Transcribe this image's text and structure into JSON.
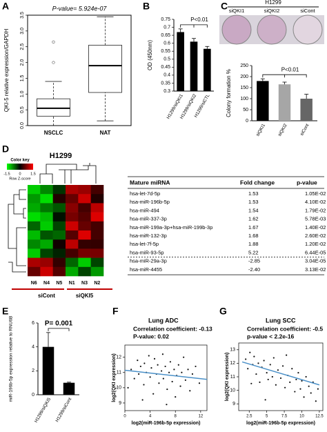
{
  "chart_data": [
    {
      "type": "box",
      "panel": "A",
      "title": "P-value= 5.924e-07",
      "y_label": "QKI-5 relative expression/GAPDH",
      "categories": [
        "NSCLC",
        "NAT"
      ],
      "boxes": [
        {
          "low": 0.0,
          "q1": 0.3,
          "median": 0.55,
          "q3": 0.85,
          "high": 1.4,
          "outliers": [
            2.0,
            2.65
          ]
        },
        {
          "low": 0.15,
          "q1": 1.05,
          "median": 1.9,
          "q3": 2.55,
          "high": 3.45,
          "outliers": []
        }
      ],
      "ylim": [
        0,
        3.5
      ],
      "yticks": [
        {
          "value": 0,
          "label": "0.0"
        },
        0.5,
        {
          "value": 1,
          "label": "1.0"
        },
        1.5,
        {
          "value": 2,
          "label": "2.0"
        },
        2.5,
        {
          "value": 3,
          "label": "3.0"
        },
        3.5
      ],
      "color": "#000000"
    },
    {
      "type": "bar",
      "panel": "B",
      "y_label": "OD (450nm)",
      "annotation": "P<0.01",
      "categories": [
        "H1299/siQKI1",
        "H1299/siQKI2",
        "H1299/siCTL"
      ],
      "values": [
        0.67,
        0.61,
        0.565
      ],
      "errors": [
        0.02,
        0.02,
        0.015
      ],
      "ylim": [
        0.3,
        0.75
      ],
      "yticks": [
        0.3,
        0.35,
        0.4,
        0.45,
        0.5,
        0.55,
        0.6,
        0.65,
        0.7,
        0.75
      ],
      "color": "#000000"
    },
    {
      "type": "bar",
      "panel": "C",
      "photo_title": "H1299",
      "photo_labels": [
        "siQKI1",
        "siQKI2",
        "siCont"
      ],
      "y_label": "Colony formation %",
      "annotation": "P<0.01",
      "categories": [
        "siQKI1",
        "siQKI2",
        "siCont"
      ],
      "values": [
        180,
        165,
        100
      ],
      "errors": [
        10,
        10,
        20
      ],
      "ylim": [
        0,
        250
      ],
      "yticks": [
        0,
        50,
        100,
        150,
        200,
        250
      ],
      "colors": [
        "#000000",
        "#a6a6a6",
        "#666666"
      ]
    },
    {
      "type": "heatmap",
      "panel": "D",
      "title": "H1299",
      "colorbar": {
        "title": "Color key",
        "ticks": [
          -1.5,
          0,
          1.5
        ],
        "label": "Row Z-score"
      },
      "columns": [
        "N6",
        "N4",
        "N5",
        "N1",
        "N3",
        "N2"
      ],
      "groups": [
        "siCont",
        "siQKI5"
      ],
      "values": [
        [
          -1.2,
          -0.8,
          -0.3,
          1.0,
          0.9,
          0.4
        ],
        [
          -0.9,
          -1.3,
          0.2,
          0.6,
          1.2,
          0.2
        ],
        [
          -1.0,
          -0.7,
          -0.5,
          0.8,
          0.4,
          1.1
        ],
        [
          -1.3,
          -1.1,
          -0.1,
          0.7,
          0.5,
          1.3
        ],
        [
          -0.6,
          -1.2,
          -0.4,
          1.2,
          0.6,
          0.4
        ],
        [
          -1.1,
          -0.5,
          -0.6,
          0.5,
          1.3,
          0.4
        ],
        [
          -0.8,
          -1.0,
          0.1,
          1.1,
          0.3,
          0.3
        ],
        [
          -1.2,
          -0.4,
          -0.2,
          0.4,
          0.7,
          0.7
        ],
        [
          1.0,
          0.9,
          0.3,
          -0.6,
          -1.2,
          -0.4
        ],
        [
          0.6,
          1.2,
          0.5,
          -1.0,
          -0.4,
          -0.9
        ]
      ]
    },
    {
      "type": "bar",
      "panel": "E",
      "y_label": "miR-196b-5p expression relative to RNU6B",
      "annotation": "P= 0.001",
      "categories": [
        "H1299/siQKI5",
        "H1299/siCont"
      ],
      "values": [
        4.0,
        1.0
      ],
      "errors": [
        1.2,
        0.05
      ],
      "ylim": [
        0,
        6
      ],
      "yticks": [
        0,
        2,
        4,
        6
      ],
      "color": "#000000"
    },
    {
      "type": "scatter",
      "panel": "F",
      "title": "Lung ADC",
      "subtitle": "Correlation coefficient: -0.13",
      "note": "P-value: 0.02",
      "x_label": "log2(miR-196b-5p expression)",
      "y_label": "log2(QKI expression)",
      "x": [
        1,
        1.5,
        2,
        2.2,
        2.5,
        3,
        3.1,
        3.4,
        3.8,
        4,
        4.2,
        4.5,
        4.7,
        5,
        5.2,
        5.4,
        5.8,
        6,
        6.1,
        6.4,
        6.7,
        7,
        7.2,
        7.5,
        7.8,
        8,
        8.2,
        8.5,
        8.8,
        9,
        9.3,
        9.6,
        10,
        10.3,
        10.7,
        11.2,
        11.8,
        0.5,
        2.8,
        6.6
      ],
      "y": [
        11.2,
        10.6,
        11.8,
        10.9,
        11.4,
        10.2,
        11.6,
        11.0,
        12.1,
        10.7,
        11.3,
        9.6,
        11.9,
        10.9,
        11.5,
        10.3,
        11.1,
        12.2,
        10.6,
        11.4,
        9.9,
        11.0,
        11.7,
        10.4,
        11.2,
        9.4,
        10.8,
        11.5,
        10.1,
        11.0,
        12.0,
        10.5,
        11.2,
        9.8,
        10.9,
        11.4,
        10.3,
        10.0,
        9.2,
        8.9
      ],
      "trend": {
        "x": [
          0,
          13
        ],
        "y": [
          11.15,
          10.55
        ]
      },
      "trend_color": "#4a90c8",
      "xlim": [
        0,
        13
      ],
      "xticks": [
        0,
        4,
        8,
        12
      ],
      "ylim": [
        8.5,
        12.8
      ],
      "yticks": [
        9,
        10,
        11,
        12
      ]
    },
    {
      "type": "scatter",
      "panel": "G",
      "title": "Lung SCC",
      "subtitle": "Correlation coefficient: -0.5",
      "note": "p-value < 2.2e-16",
      "x_label": "log2(miR-196b-5p expression)",
      "y_label": "log2(QKI expression)",
      "x": [
        2,
        2.3,
        2.6,
        3,
        3.2,
        3.5,
        3.8,
        4,
        4.3,
        4.6,
        5,
        5.2,
        5.5,
        5.8,
        6,
        6.3,
        6.6,
        7,
        7.3,
        7.6,
        8,
        8.3,
        8.6,
        9,
        9.2,
        9.5,
        9.8,
        10,
        10.3,
        10.6,
        11,
        11.3,
        11.6,
        12,
        12.3,
        4.8,
        7.8,
        2.8
      ],
      "y": [
        12.3,
        11.6,
        12.8,
        11.9,
        12.5,
        11.2,
        12.0,
        10.6,
        11.7,
        12.2,
        11.3,
        10.8,
        11.9,
        11.0,
        12.4,
        10.4,
        11.5,
        10.9,
        11.8,
        10.2,
        11.1,
        10.6,
        11.6,
        9.9,
        10.8,
        11.3,
        10.1,
        10.7,
        9.5,
        11.0,
        10.3,
        9.8,
        10.6,
        9.2,
        10.1,
        9.3,
        12.6,
        10.5
      ],
      "trend": {
        "x": [
          1.5,
          12.5
        ],
        "y": [
          12.1,
          10.4
        ]
      },
      "trend_color": "#4a90c8",
      "xlim": [
        1,
        13
      ],
      "xticks": [
        2.5,
        5,
        7.5,
        10,
        12.5
      ],
      "ylim": [
        8.5,
        13.5
      ],
      "yticks": [
        9,
        10,
        11,
        12,
        13
      ]
    }
  ],
  "table": {
    "columns": [
      "Mature miRNA",
      "Fold change",
      "p-value"
    ],
    "rows": [
      [
        "hsa-let-7d-5p",
        "1.53",
        "1.05E-02"
      ],
      [
        "hsa-miR-196b-5p",
        "1.53",
        "4.10E-02"
      ],
      [
        "hsa-miR-494",
        "1.54",
        "1.79E-02"
      ],
      [
        "hsa-miR-337-3p",
        "1.62",
        "5.78E-03"
      ],
      [
        "hsa-miR-199a-3p+hsa-miR-199b-3p",
        "1.67",
        "1.40E-02"
      ],
      [
        "hsa-miR-132-3p",
        "1.68",
        "2.60E-02"
      ],
      [
        "hsa-let-7f-5p",
        "1.88",
        "1.20E-02"
      ],
      [
        "hsa-miR-93-5p",
        "5.22",
        "6.44E-05"
      ],
      [
        "hsa-miR-29a-3p",
        "-2.85",
        "3.04E-05"
      ],
      [
        "hsa-miR-4455",
        "-2.40",
        "3.13E-02"
      ]
    ]
  }
}
